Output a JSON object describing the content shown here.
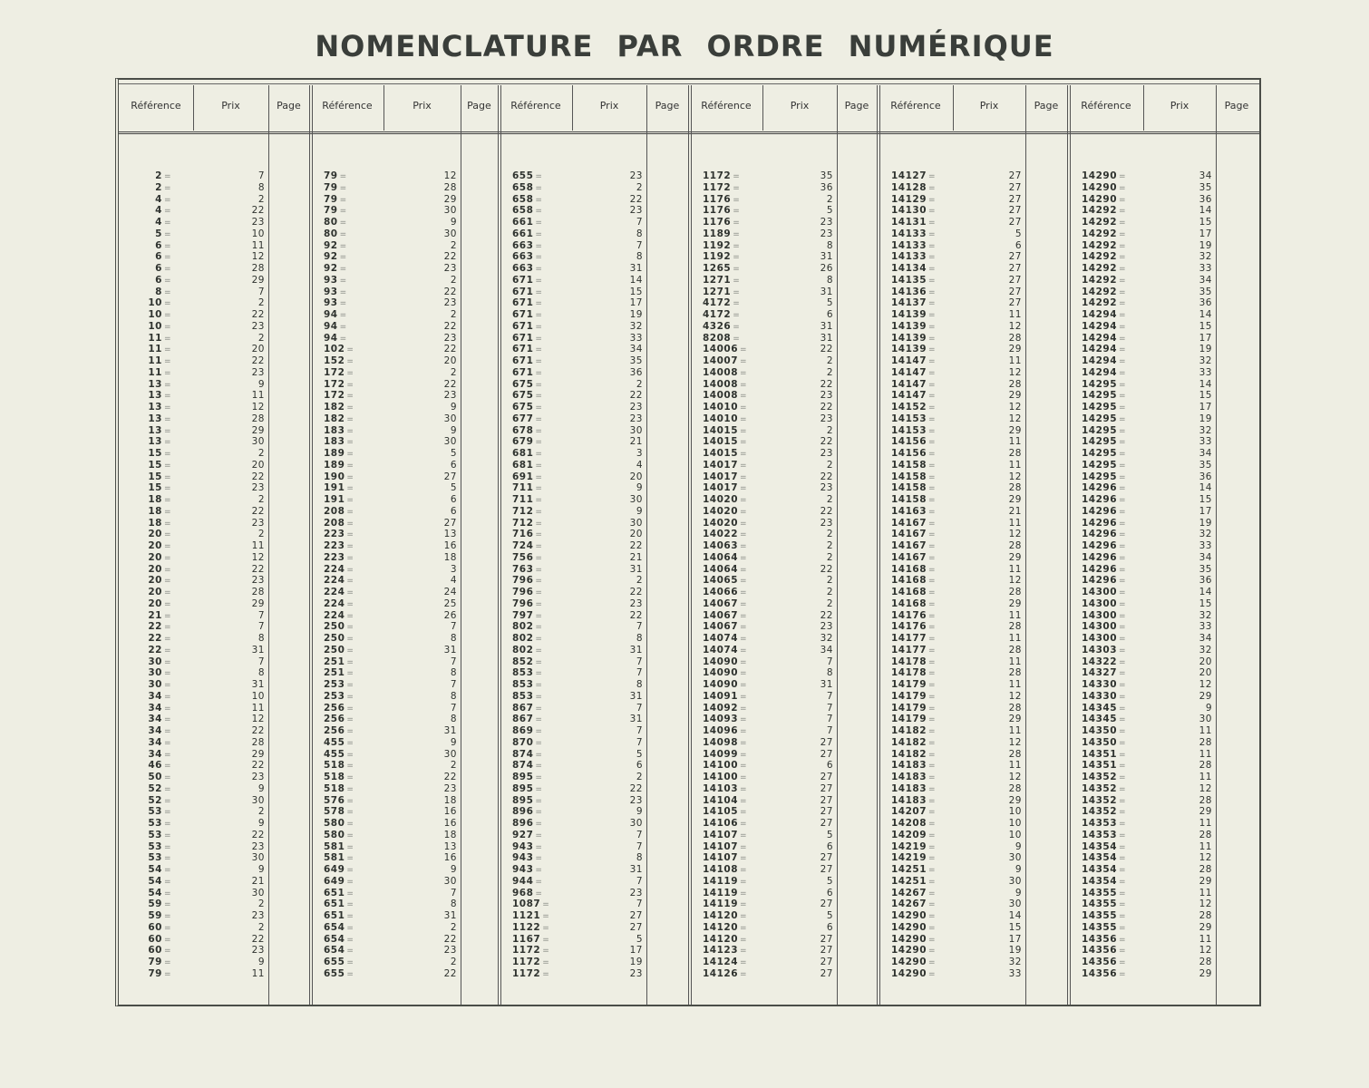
{
  "title": "NOMENCLATURE PAR ORDRE NUMÉRIQUE",
  "headers": [
    "Référence",
    "Prix",
    "Page"
  ],
  "separator": "=",
  "rows": [
    [
      "2",
      "7",
      "79",
      "12",
      "655",
      "23",
      "1172",
      "35",
      "14127",
      "27",
      "14290",
      "34"
    ],
    [
      "2",
      "8",
      "79",
      "28",
      "658",
      "2",
      "1172",
      "36",
      "14128",
      "27",
      "14290",
      "35"
    ],
    [
      "4",
      "2",
      "79",
      "29",
      "658",
      "22",
      "1176",
      "2",
      "14129",
      "27",
      "14290",
      "36"
    ],
    [
      "4",
      "22",
      "79",
      "30",
      "658",
      "23",
      "1176",
      "5",
      "14130",
      "27",
      "14292",
      "14"
    ],
    [
      "4",
      "23",
      "80",
      "9",
      "661",
      "7",
      "1176",
      "23",
      "14131",
      "27",
      "14292",
      "15"
    ],
    [
      "5",
      "10",
      "80",
      "30",
      "661",
      "8",
      "1189",
      "23",
      "14133",
      "5",
      "14292",
      "17"
    ],
    [
      "6",
      "11",
      "92",
      "2",
      "663",
      "7",
      "1192",
      "8",
      "14133",
      "6",
      "14292",
      "19"
    ],
    [
      "6",
      "12",
      "92",
      "22",
      "663",
      "8",
      "1192",
      "31",
      "14133",
      "27",
      "14292",
      "32"
    ],
    [
      "6",
      "28",
      "92",
      "23",
      "663",
      "31",
      "1265",
      "26",
      "14134",
      "27",
      "14292",
      "33"
    ],
    [
      "6",
      "29",
      "93",
      "2",
      "671",
      "14",
      "1271",
      "8",
      "14135",
      "27",
      "14292",
      "34"
    ],
    [
      "8",
      "7",
      "93",
      "22",
      "671",
      "15",
      "1271",
      "31",
      "14136",
      "27",
      "14292",
      "35"
    ],
    [
      "10",
      "2",
      "93",
      "23",
      "671",
      "17",
      "4172",
      "5",
      "14137",
      "27",
      "14292",
      "36"
    ],
    [
      "10",
      "22",
      "94",
      "2",
      "671",
      "19",
      "4172",
      "6",
      "14139",
      "11",
      "14294",
      "14"
    ],
    [
      "10",
      "23",
      "94",
      "22",
      "671",
      "32",
      "4326",
      "31",
      "14139",
      "12",
      "14294",
      "15"
    ],
    [
      "11",
      "2",
      "94",
      "23",
      "671",
      "33",
      "8208",
      "31",
      "14139",
      "28",
      "14294",
      "17"
    ],
    [
      "11",
      "20",
      "102",
      "22",
      "671",
      "34",
      "14006",
      "22",
      "14139",
      "29",
      "14294",
      "19"
    ],
    [
      "11",
      "22",
      "152",
      "20",
      "671",
      "35",
      "14007",
      "2",
      "14147",
      "11",
      "14294",
      "32"
    ],
    [
      "11",
      "23",
      "172",
      "2",
      "671",
      "36",
      "14008",
      "2",
      "14147",
      "12",
      "14294",
      "33"
    ],
    [
      "13",
      "9",
      "172",
      "22",
      "675",
      "2",
      "14008",
      "22",
      "14147",
      "28",
      "14295",
      "14"
    ],
    [
      "13",
      "11",
      "172",
      "23",
      "675",
      "22",
      "14008",
      "23",
      "14147",
      "29",
      "14295",
      "15"
    ],
    [
      "13",
      "12",
      "182",
      "9",
      "675",
      "23",
      "14010",
      "22",
      "14152",
      "12",
      "14295",
      "17"
    ],
    [
      "13",
      "28",
      "182",
      "30",
      "677",
      "23",
      "14010",
      "23",
      "14153",
      "12",
      "14295",
      "19"
    ],
    [
      "13",
      "29",
      "183",
      "9",
      "678",
      "30",
      "14015",
      "2",
      "14153",
      "29",
      "14295",
      "32"
    ],
    [
      "13",
      "30",
      "183",
      "30",
      "679",
      "21",
      "14015",
      "22",
      "14156",
      "11",
      "14295",
      "33"
    ],
    [
      "15",
      "2",
      "189",
      "5",
      "681",
      "3",
      "14015",
      "23",
      "14156",
      "28",
      "14295",
      "34"
    ],
    [
      "15",
      "20",
      "189",
      "6",
      "681",
      "4",
      "14017",
      "2",
      "14158",
      "11",
      "14295",
      "35"
    ],
    [
      "15",
      "22",
      "190",
      "27",
      "691",
      "20",
      "14017",
      "22",
      "14158",
      "12",
      "14295",
      "36"
    ],
    [
      "15",
      "23",
      "191",
      "5",
      "711",
      "9",
      "14017",
      "23",
      "14158",
      "28",
      "14296",
      "14"
    ],
    [
      "18",
      "2",
      "191",
      "6",
      "711",
      "30",
      "14020",
      "2",
      "14158",
      "29",
      "14296",
      "15"
    ],
    [
      "18",
      "22",
      "208",
      "6",
      "712",
      "9",
      "14020",
      "22",
      "14163",
      "21",
      "14296",
      "17"
    ],
    [
      "18",
      "23",
      "208",
      "27",
      "712",
      "30",
      "14020",
      "23",
      "14167",
      "11",
      "14296",
      "19"
    ],
    [
      "20",
      "2",
      "223",
      "13",
      "716",
      "20",
      "14022",
      "2",
      "14167",
      "12",
      "14296",
      "32"
    ],
    [
      "20",
      "11",
      "223",
      "16",
      "724",
      "22",
      "14063",
      "2",
      "14167",
      "28",
      "14296",
      "33"
    ],
    [
      "20",
      "12",
      "223",
      "18",
      "756",
      "21",
      "14064",
      "2",
      "14167",
      "29",
      "14296",
      "34"
    ],
    [
      "20",
      "22",
      "224",
      "3",
      "763",
      "31",
      "14064",
      "22",
      "14168",
      "11",
      "14296",
      "35"
    ],
    [
      "20",
      "23",
      "224",
      "4",
      "796",
      "2",
      "14065",
      "2",
      "14168",
      "12",
      "14296",
      "36"
    ],
    [
      "20",
      "28",
      "224",
      "24",
      "796",
      "22",
      "14066",
      "2",
      "14168",
      "28",
      "14300",
      "14"
    ],
    [
      "20",
      "29",
      "224",
      "25",
      "796",
      "23",
      "14067",
      "2",
      "14168",
      "29",
      "14300",
      "15"
    ],
    [
      "21",
      "7",
      "224",
      "26",
      "797",
      "22",
      "14067",
      "22",
      "14176",
      "11",
      "14300",
      "32"
    ],
    [
      "22",
      "7",
      "250",
      "7",
      "802",
      "7",
      "14067",
      "23",
      "14176",
      "28",
      "14300",
      "33"
    ],
    [
      "22",
      "8",
      "250",
      "8",
      "802",
      "8",
      "14074",
      "32",
      "14177",
      "11",
      "14300",
      "34"
    ],
    [
      "22",
      "31",
      "250",
      "31",
      "802",
      "31",
      "14074",
      "34",
      "14177",
      "28",
      "14303",
      "32"
    ],
    [
      "30",
      "7",
      "251",
      "7",
      "852",
      "7",
      "14090",
      "7",
      "14178",
      "11",
      "14322",
      "20"
    ],
    [
      "30",
      "8",
      "251",
      "8",
      "853",
      "7",
      "14090",
      "8",
      "14178",
      "28",
      "14327",
      "20"
    ],
    [
      "30",
      "31",
      "253",
      "7",
      "853",
      "8",
      "14090",
      "31",
      "14179",
      "11",
      "14330",
      "12"
    ],
    [
      "34",
      "10",
      "253",
      "8",
      "853",
      "31",
      "14091",
      "7",
      "14179",
      "12",
      "14330",
      "29"
    ],
    [
      "34",
      "11",
      "256",
      "7",
      "867",
      "7",
      "14092",
      "7",
      "14179",
      "28",
      "14345",
      "9"
    ],
    [
      "34",
      "12",
      "256",
      "8",
      "867",
      "31",
      "14093",
      "7",
      "14179",
      "29",
      "14345",
      "30"
    ],
    [
      "34",
      "22",
      "256",
      "31",
      "869",
      "7",
      "14096",
      "7",
      "14182",
      "11",
      "14350",
      "11"
    ],
    [
      "34",
      "28",
      "455",
      "9",
      "870",
      "7",
      "14098",
      "27",
      "14182",
      "12",
      "14350",
      "28"
    ],
    [
      "34",
      "29",
      "455",
      "30",
      "874",
      "5",
      "14099",
      "27",
      "14182",
      "28",
      "14351",
      "11"
    ],
    [
      "46",
      "22",
      "518",
      "2",
      "874",
      "6",
      "14100",
      "6",
      "14183",
      "11",
      "14351",
      "28"
    ],
    [
      "50",
      "23",
      "518",
      "22",
      "895",
      "2",
      "14100",
      "27",
      "14183",
      "12",
      "14352",
      "11"
    ],
    [
      "52",
      "9",
      "518",
      "23",
      "895",
      "22",
      "14103",
      "27",
      "14183",
      "28",
      "14352",
      "12"
    ],
    [
      "52",
      "30",
      "576",
      "18",
      "895",
      "23",
      "14104",
      "27",
      "14183",
      "29",
      "14352",
      "28"
    ],
    [
      "53",
      "2",
      "578",
      "16",
      "896",
      "9",
      "14105",
      "27",
      "14207",
      "10",
      "14352",
      "29"
    ],
    [
      "53",
      "9",
      "580",
      "16",
      "896",
      "30",
      "14106",
      "27",
      "14208",
      "10",
      "14353",
      "11"
    ],
    [
      "53",
      "22",
      "580",
      "18",
      "927",
      "7",
      "14107",
      "5",
      "14209",
      "10",
      "14353",
      "28"
    ],
    [
      "53",
      "23",
      "581",
      "13",
      "943",
      "7",
      "14107",
      "6",
      "14219",
      "9",
      "14354",
      "11"
    ],
    [
      "53",
      "30",
      "581",
      "16",
      "943",
      "8",
      "14107",
      "27",
      "14219",
      "30",
      "14354",
      "12"
    ],
    [
      "54",
      "9",
      "649",
      "9",
      "943",
      "31",
      "14108",
      "27",
      "14251",
      "9",
      "14354",
      "28"
    ],
    [
      "54",
      "21",
      "649",
      "30",
      "944",
      "7",
      "14119",
      "5",
      "14251",
      "30",
      "14354",
      "29"
    ],
    [
      "54",
      "30",
      "651",
      "7",
      "968",
      "23",
      "14119",
      "6",
      "14267",
      "9",
      "14355",
      "11"
    ],
    [
      "59",
      "2",
      "651",
      "8",
      "1087",
      "7",
      "14119",
      "27",
      "14267",
      "30",
      "14355",
      "12"
    ],
    [
      "59",
      "23",
      "651",
      "31",
      "1121",
      "27",
      "14120",
      "5",
      "14290",
      "14",
      "14355",
      "28"
    ],
    [
      "60",
      "2",
      "654",
      "2",
      "1122",
      "27",
      "14120",
      "6",
      "14290",
      "15",
      "14355",
      "29"
    ],
    [
      "60",
      "22",
      "654",
      "22",
      "1167",
      "5",
      "14120",
      "27",
      "14290",
      "17",
      "14356",
      "11"
    ],
    [
      "60",
      "23",
      "654",
      "23",
      "1172",
      "17",
      "14123",
      "27",
      "14290",
      "19",
      "14356",
      "12"
    ],
    [
      "79",
      "9",
      "655",
      "2",
      "1172",
      "19",
      "14124",
      "27",
      "14290",
      "32",
      "14356",
      "28"
    ],
    [
      "79",
      "11",
      "655",
      "22",
      "1172",
      "23",
      "14126",
      "27",
      "14290",
      "33",
      "14356",
      "29"
    ]
  ]
}
